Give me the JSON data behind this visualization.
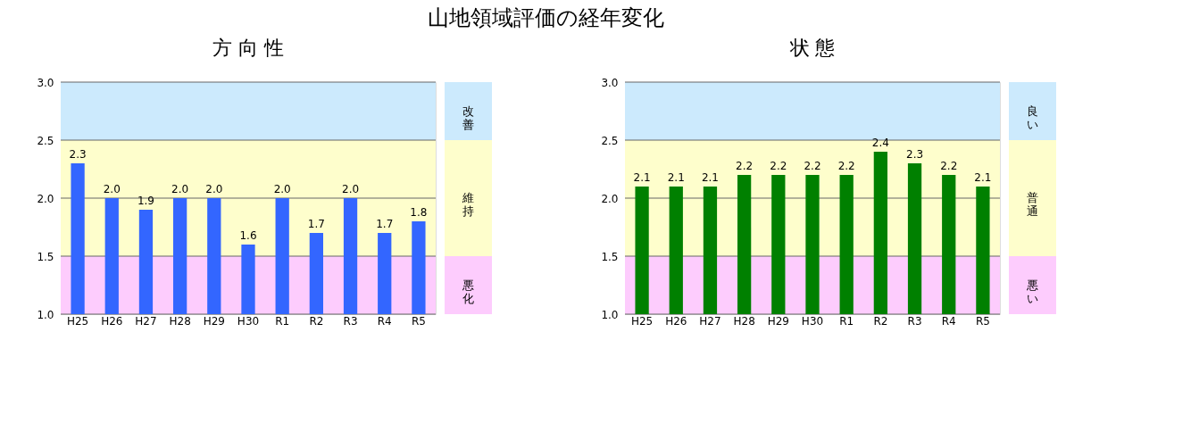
{
  "chart_data": [
    {
      "type": "bar",
      "title": "山地領域評価の経年変化",
      "subtitle": "方 向 性",
      "categories": [
        "H25",
        "H26",
        "H27",
        "H28",
        "H29",
        "H30",
        "R1",
        "R2",
        "R3",
        "R4",
        "R5"
      ],
      "values": [
        2.3,
        2.0,
        1.9,
        2.0,
        2.0,
        1.6,
        2.0,
        1.7,
        2.0,
        1.7,
        1.8
      ],
      "color": "#3366ff",
      "value_labels": [
        "2.3",
        "2.0",
        "1.9",
        "2.0",
        "2.0",
        "1.6",
        "2.0",
        "1.7",
        "2.0",
        "1.7",
        "1.8"
      ],
      "ylim": [
        1.0,
        3.0
      ],
      "yticks": [
        {
          "value": 1.0,
          "label": "1.0"
        },
        {
          "value": 1.5,
          "label": "1.5"
        },
        {
          "value": 2.0,
          "label": "2.0"
        },
        {
          "value": 2.5,
          "label": "2.5"
        },
        {
          "value": 3.0,
          "label": "3.0"
        }
      ],
      "grid": "y",
      "bands": [
        {
          "axis": "y",
          "from": 2.5,
          "to": 3.0,
          "label": "改善",
          "color": "#cceafd"
        },
        {
          "axis": "y",
          "from": 1.5,
          "to": 2.5,
          "label": "維持",
          "color": "#fefecc"
        },
        {
          "axis": "y",
          "from": 1.0,
          "to": 1.5,
          "label": "悪化",
          "color": "#fdccfd"
        }
      ]
    },
    {
      "type": "bar",
      "subtitle": "状 態",
      "categories": [
        "H25",
        "H26",
        "H27",
        "H28",
        "H29",
        "H30",
        "R1",
        "R2",
        "R3",
        "R4",
        "R5"
      ],
      "values": [
        2.1,
        2.1,
        2.1,
        2.2,
        2.2,
        2.2,
        2.2,
        2.4,
        2.3,
        2.2,
        2.1
      ],
      "color": "#008000",
      "value_labels": [
        "2.1",
        "2.1",
        "2.1",
        "2.2",
        "2.2",
        "2.2",
        "2.2",
        "2.4",
        "2.3",
        "2.2",
        "2.1"
      ],
      "ylim": [
        1.0,
        3.0
      ],
      "yticks": [
        {
          "value": 1.0,
          "label": "1.0"
        },
        {
          "value": 1.5,
          "label": "1.5"
        },
        {
          "value": 2.0,
          "label": "2.0"
        },
        {
          "value": 2.5,
          "label": "2.5"
        },
        {
          "value": 3.0,
          "label": "3.0"
        }
      ],
      "grid": "y",
      "bands": [
        {
          "axis": "y",
          "from": 2.5,
          "to": 3.0,
          "label": "良い",
          "color": "#cceafd"
        },
        {
          "axis": "y",
          "from": 1.5,
          "to": 2.5,
          "label": "普通",
          "color": "#fefecc"
        },
        {
          "axis": "y",
          "from": 1.0,
          "to": 1.5,
          "label": "悪い",
          "color": "#fdccfd"
        }
      ]
    }
  ]
}
